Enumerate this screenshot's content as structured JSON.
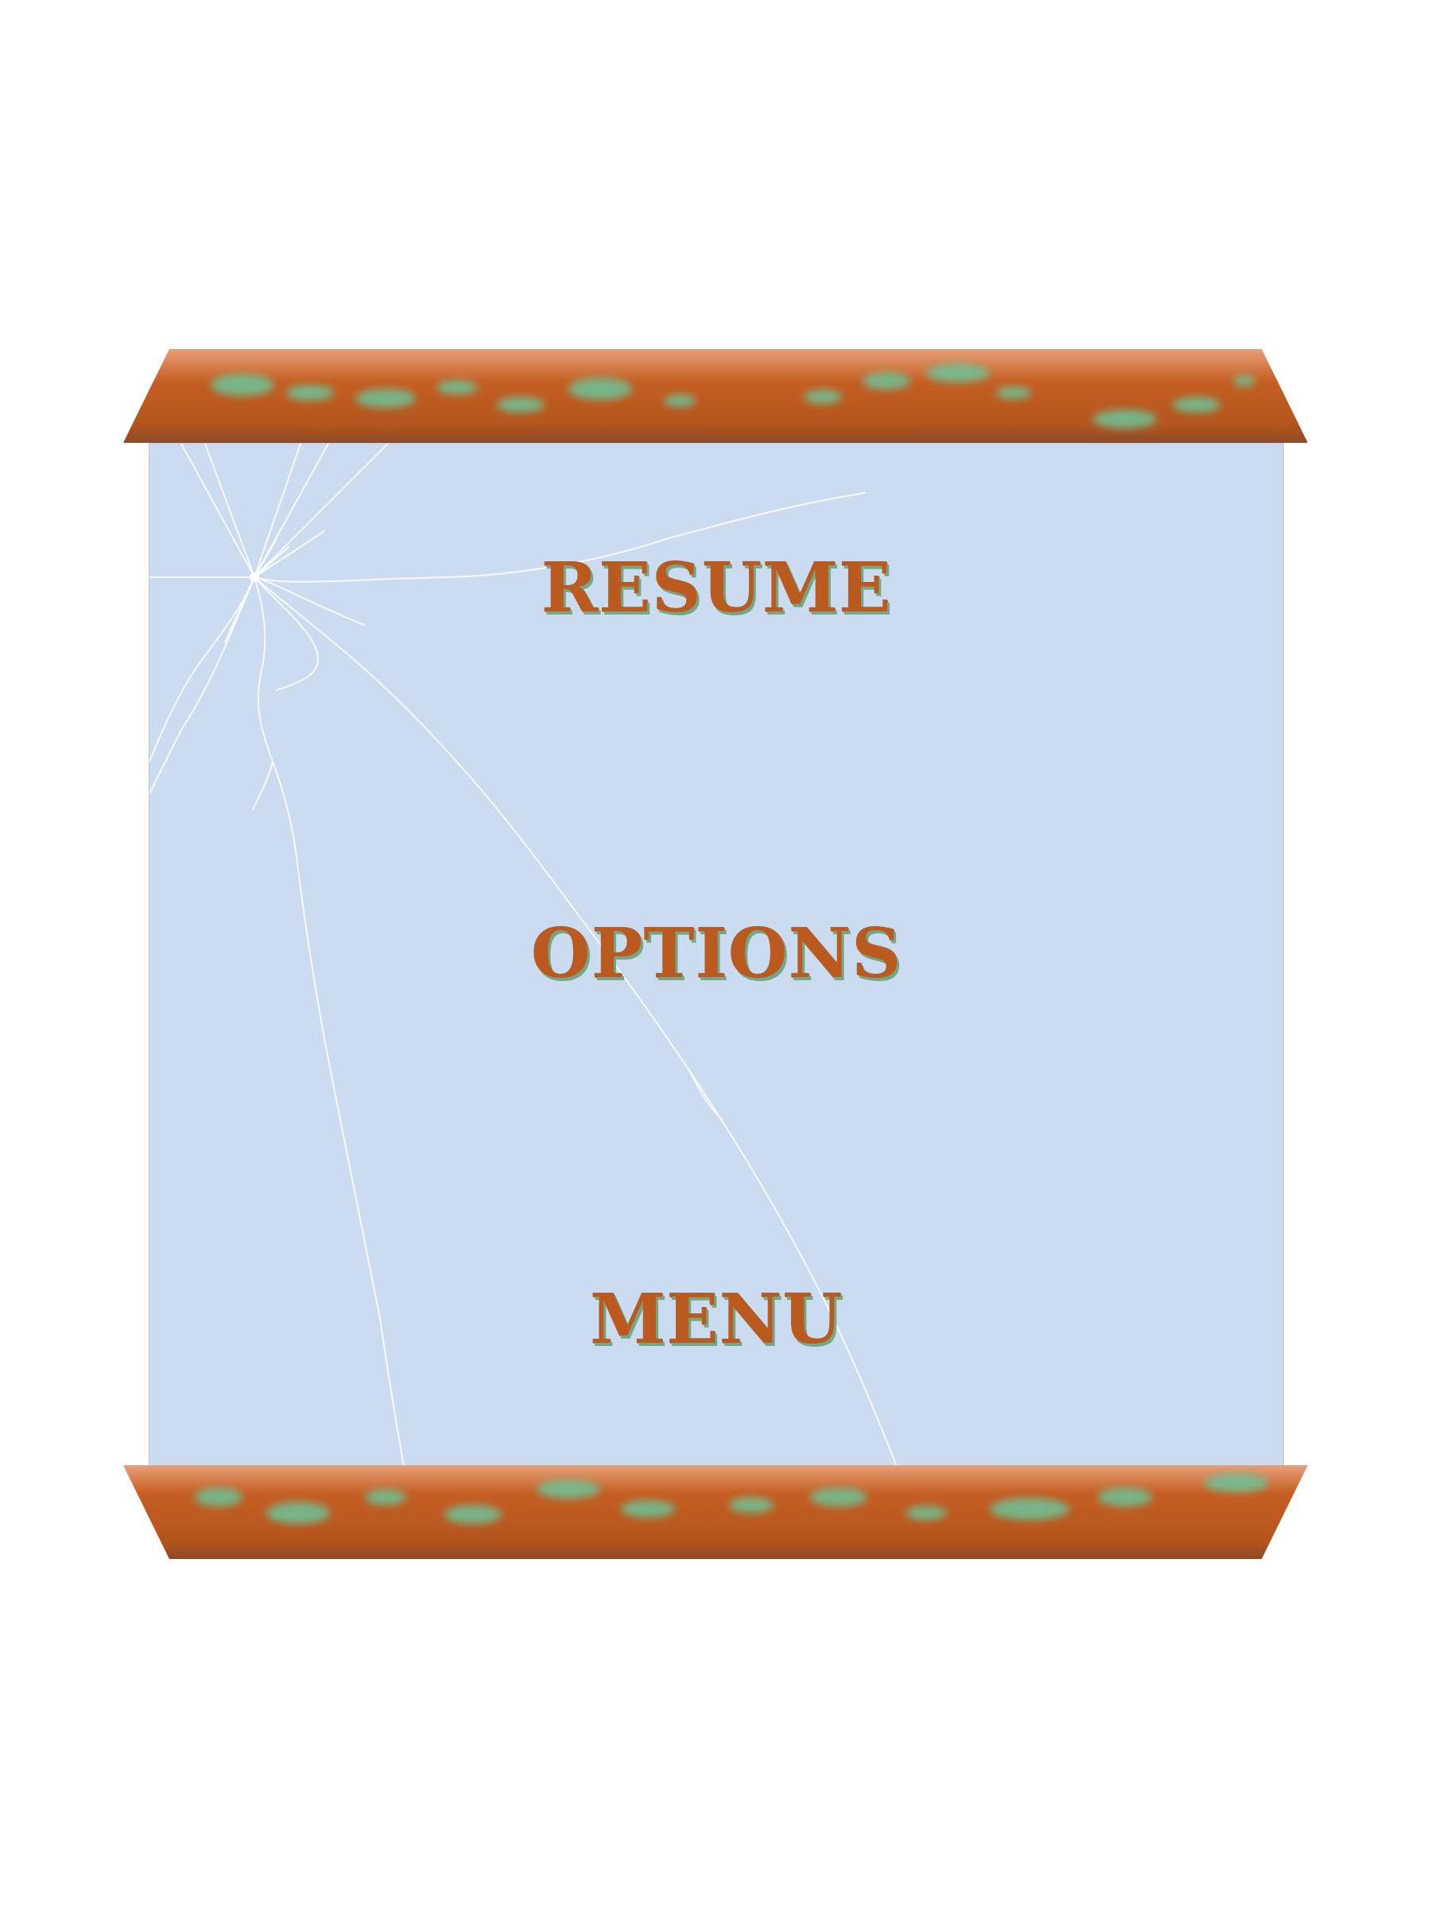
{
  "pause_menu": {
    "items": [
      {
        "label": "RESUME"
      },
      {
        "label": "OPTIONS"
      },
      {
        "label": "MENU"
      }
    ]
  },
  "colors": {
    "background": "#fefefe",
    "panel": "#cbdcf0",
    "bar_rust": "#bb5a1e",
    "bar_patina": "#6cc49a",
    "text": "#bb5a1e",
    "text_shadow": "#72a88a"
  },
  "icons": {
    "crack": "glass-crack-icon"
  }
}
